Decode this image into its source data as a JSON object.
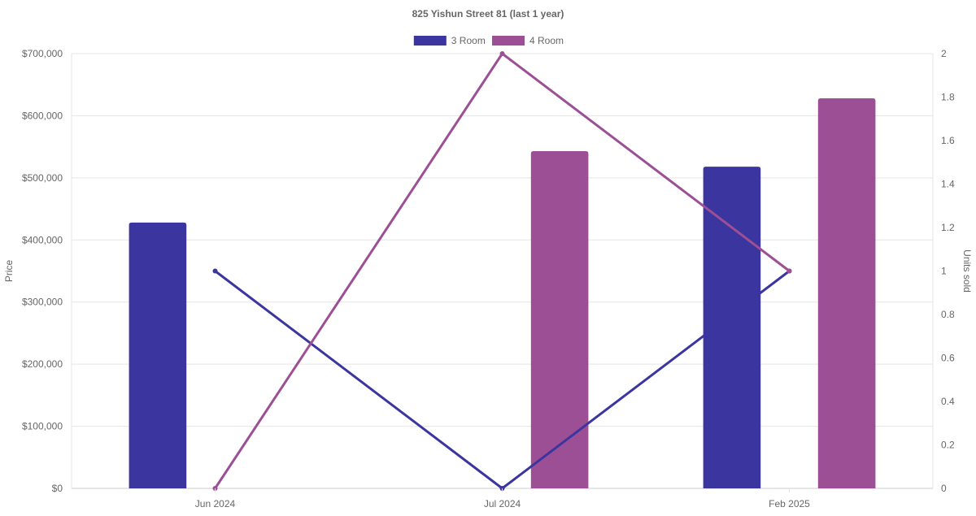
{
  "chart_data": {
    "type": "bar",
    "title": "825 Yishun Street 81 (last 1 year)",
    "categories": [
      "Jun 2024",
      "Jul 2024",
      "Feb 2025"
    ],
    "y_left": {
      "label": "Price",
      "min": 0,
      "max": 700000,
      "ticks": [
        "$0",
        "$100,000",
        "$200,000",
        "$300,000",
        "$400,000",
        "$500,000",
        "$600,000",
        "$700,000"
      ]
    },
    "y_right": {
      "label": "Units sold",
      "min": 0,
      "max": 2,
      "ticks": [
        "0",
        "0.2",
        "0.4",
        "0.6",
        "0.8",
        "1",
        "1.2",
        "1.4",
        "1.6",
        "1.8",
        "2"
      ]
    },
    "grid": true,
    "legend_position": "top",
    "series": [
      {
        "name": "3 Room",
        "color": "#3b35a0",
        "price_values": [
          428000,
          null,
          518000
        ],
        "units_sold": [
          1,
          0,
          1
        ]
      },
      {
        "name": "4 Room",
        "color": "#9c4f94",
        "price_values": [
          null,
          543000,
          628000
        ],
        "units_sold": [
          0,
          2,
          1
        ]
      }
    ]
  }
}
